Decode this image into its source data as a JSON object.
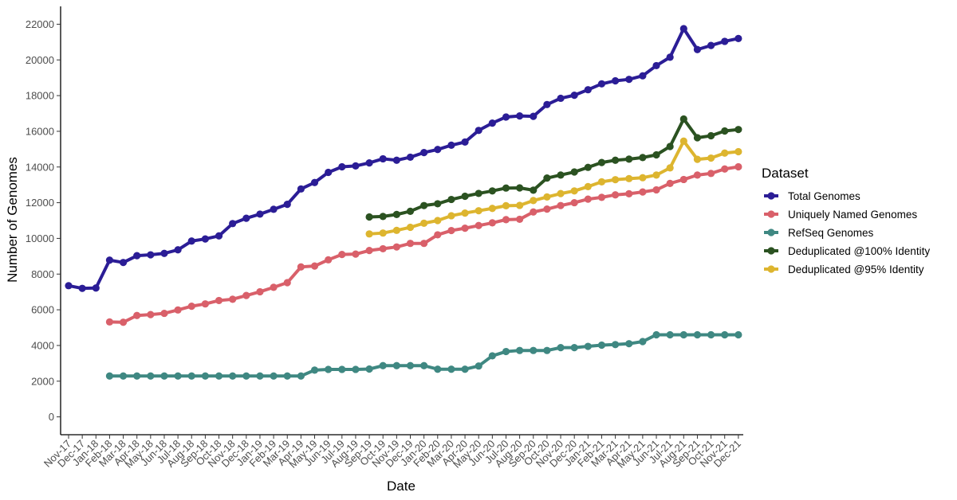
{
  "chart_data": {
    "type": "line",
    "xlabel": "Date",
    "ylabel": "Number of Genomes",
    "ylim": [
      -1000,
      23000
    ],
    "yticks": [
      0,
      2000,
      4000,
      6000,
      8000,
      10000,
      12000,
      14000,
      16000,
      18000,
      20000,
      22000
    ],
    "grid": false,
    "legend_title": "Dataset",
    "legend_position": "right",
    "categories": [
      "Nov-17",
      "Dec-17",
      "Jan-18",
      "Feb-18",
      "Mar-18",
      "Apr-18",
      "May-18",
      "Jun-18",
      "Jul-18",
      "Aug-18",
      "Sep-18",
      "Oct-18",
      "Nov-18",
      "Dec-18",
      "Jan-19",
      "Feb-19",
      "Mar-19",
      "Apr-19",
      "May-19",
      "Jun-19",
      "Jul-19",
      "Aug-19",
      "Sep-19",
      "Oct-19",
      "Nov-19",
      "Dec-19",
      "Jan-20",
      "Feb-20",
      "Mar-20",
      "Apr-20",
      "May-20",
      "Jun-20",
      "Jul-20",
      "Aug-20",
      "Sep-20",
      "Oct-20",
      "Nov-20",
      "Dec-20",
      "Jan-21",
      "Feb-21",
      "Mar-21",
      "Apr-21",
      "May-21",
      "Jun-21",
      "Jul-21",
      "Aug-21",
      "Sep-21",
      "Oct-21",
      "Nov-21",
      "Dec-21"
    ],
    "series": [
      {
        "name": "Total Genomes",
        "color": "#2b1d96",
        "values": [
          7350,
          7200,
          7220,
          8780,
          8650,
          9030,
          9080,
          9160,
          9360,
          9850,
          9970,
          10140,
          10830,
          11130,
          11360,
          11630,
          11910,
          12770,
          13130,
          13700,
          14010,
          14060,
          14230,
          14460,
          14380,
          14550,
          14810,
          14980,
          15220,
          15400,
          16050,
          16460,
          16800,
          16860,
          16840,
          17500,
          17850,
          18020,
          18330,
          18660,
          18830,
          18910,
          19110,
          19680,
          20150,
          21750,
          20580,
          20810,
          21040,
          21200
        ]
      },
      {
        "name": "Uniquely Named Genomes",
        "color": "#d9606a",
        "values": [
          null,
          null,
          null,
          5320,
          5300,
          5680,
          5730,
          5800,
          5990,
          6200,
          6330,
          6520,
          6590,
          6800,
          7010,
          7260,
          7520,
          8400,
          8450,
          8800,
          9100,
          9120,
          9320,
          9420,
          9520,
          9720,
          9720,
          10200,
          10440,
          10570,
          10720,
          10870,
          11050,
          11070,
          11480,
          11640,
          11840,
          12000,
          12200,
          12300,
          12440,
          12500,
          12600,
          12720,
          13080,
          13300,
          13550,
          13640,
          13890,
          14010
        ]
      },
      {
        "name": "RefSeq Genomes",
        "color": "#3f8882",
        "values": [
          null,
          null,
          null,
          2290,
          2290,
          2290,
          2290,
          2290,
          2290,
          2290,
          2290,
          2290,
          2290,
          2290,
          2290,
          2290,
          2290,
          2290,
          2620,
          2660,
          2660,
          2660,
          2680,
          2870,
          2870,
          2870,
          2870,
          2670,
          2670,
          2670,
          2850,
          3420,
          3660,
          3720,
          3720,
          3720,
          3880,
          3880,
          3950,
          4020,
          4050,
          4100,
          4220,
          4600,
          4600,
          4600,
          4600,
          4600,
          4600,
          4600
        ]
      },
      {
        "name": "Deduplicated @100% Identity",
        "color": "#2b5221",
        "values": [
          null,
          null,
          null,
          null,
          null,
          null,
          null,
          null,
          null,
          null,
          null,
          null,
          null,
          null,
          null,
          null,
          null,
          null,
          null,
          null,
          null,
          null,
          11200,
          11230,
          11340,
          11520,
          11840,
          11940,
          12180,
          12360,
          12520,
          12660,
          12820,
          12830,
          12700,
          13380,
          13550,
          13720,
          13980,
          14250,
          14380,
          14440,
          14530,
          14680,
          15150,
          16690,
          15640,
          15750,
          16020,
          16100
        ]
      },
      {
        "name": "Deduplicated @95% Identity",
        "color": "#ddb52f",
        "values": [
          null,
          null,
          null,
          null,
          null,
          null,
          null,
          null,
          null,
          null,
          null,
          null,
          null,
          null,
          null,
          null,
          null,
          null,
          null,
          null,
          null,
          null,
          10250,
          10300,
          10450,
          10620,
          10850,
          11000,
          11270,
          11420,
          11550,
          11680,
          11830,
          11850,
          12120,
          12320,
          12510,
          12660,
          12900,
          13170,
          13290,
          13350,
          13400,
          13550,
          13950,
          15450,
          14430,
          14500,
          14780,
          14860
        ]
      }
    ]
  }
}
